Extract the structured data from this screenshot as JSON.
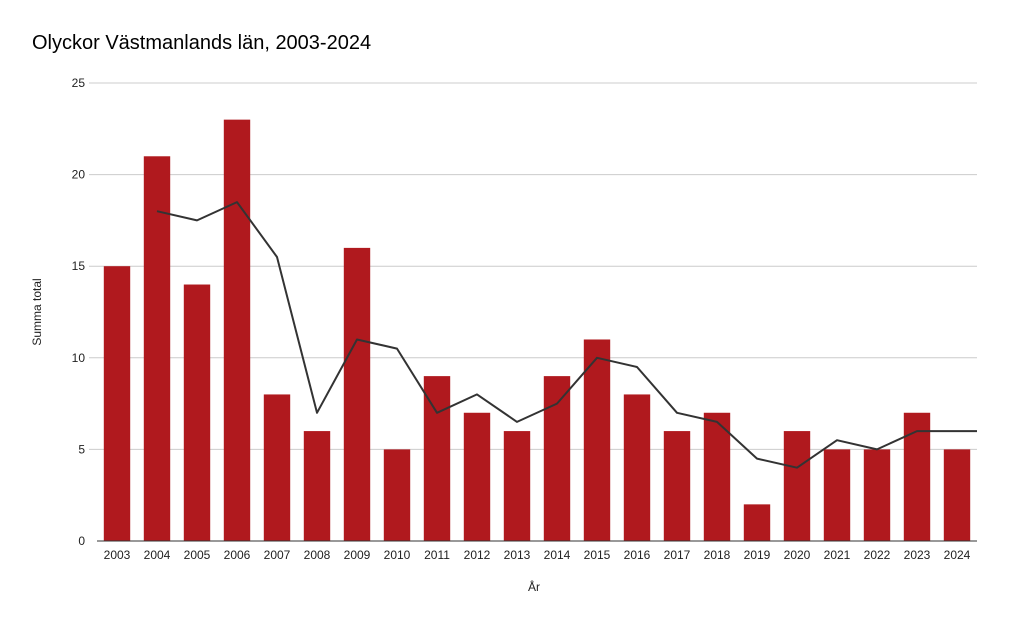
{
  "chart_data": {
    "type": "bar",
    "title": "Olyckor Västmanlands län, 2003-2024",
    "xlabel": "År",
    "ylabel": "Summa total",
    "ylim": [
      0,
      25
    ],
    "yticks": [
      0,
      5,
      10,
      15,
      20,
      25
    ],
    "grid": true,
    "legend": "none",
    "categories": [
      "2003",
      "2004",
      "2005",
      "2006",
      "2007",
      "2008",
      "2009",
      "2010",
      "2011",
      "2012",
      "2013",
      "2014",
      "2015",
      "2016",
      "2017",
      "2018",
      "2019",
      "2020",
      "2021",
      "2022",
      "2023",
      "2024"
    ],
    "series": [
      {
        "type": "bar",
        "color": "#b0191e",
        "values": [
          15,
          21,
          14,
          23,
          8,
          6,
          16,
          5,
          9,
          7,
          6,
          9,
          11,
          8,
          6,
          7,
          2,
          6,
          5,
          5,
          7,
          5
        ]
      },
      {
        "type": "line",
        "color": "#333333",
        "values": [
          null,
          18,
          17.5,
          18.5,
          15.5,
          7,
          11,
          10.5,
          7,
          8,
          6.5,
          7.5,
          10,
          9.5,
          7,
          6.5,
          4.5,
          4,
          5.5,
          5,
          6,
          6
        ]
      }
    ]
  }
}
